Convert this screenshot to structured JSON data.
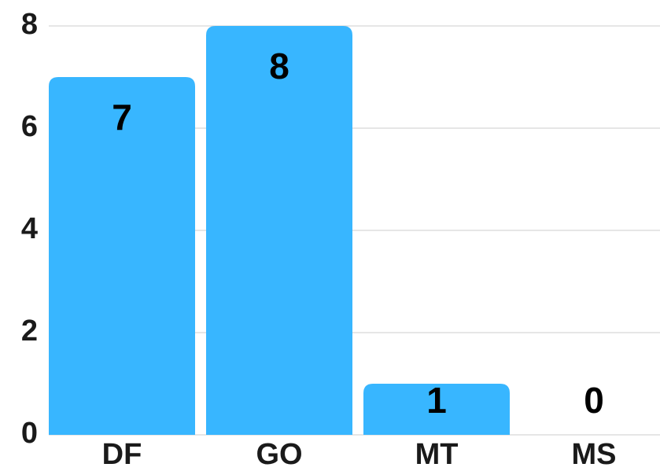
{
  "chart_data": {
    "type": "bar",
    "categories": [
      "DF",
      "GO",
      "MT",
      "MS"
    ],
    "values": [
      7,
      8,
      1,
      0
    ],
    "color": "#38b6ff",
    "ylim": [
      0,
      8
    ],
    "yticks": [
      0,
      2,
      4,
      6,
      8
    ],
    "grid": true
  }
}
